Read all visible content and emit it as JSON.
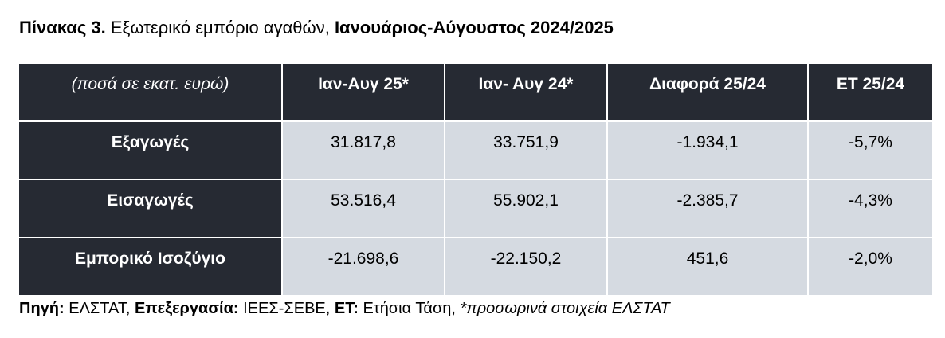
{
  "title": {
    "parts": [
      "Πίνακας 3.",
      " Εξωτερικό εμπόριο αγαθών, ",
      "Ιανουάριος-Αύγουστος 2024/2025"
    ]
  },
  "table": {
    "header": [
      "(ποσά σε εκατ. ευρώ)",
      "Ιαν-Αυγ 25*",
      "Ιαν- Αυγ 24*",
      "Διαφορά 25/24",
      "ΕΤ 25/24"
    ],
    "rows": [
      [
        "Εξαγωγές",
        "31.817,8",
        "33.751,9",
        "-1.934,1",
        "-5,7%"
      ],
      [
        "Εισαγωγές",
        "53.516,4",
        "55.902,1",
        "-2.385,7",
        "-4,3%"
      ],
      [
        "Εμπορικό Ισοζύγιο",
        "-21.698,6",
        "-22.150,2",
        "451,6",
        "-2,0%"
      ]
    ]
  },
  "footer": {
    "parts": [
      "Πηγή:",
      " ΕΛΣΤΑΤ, ",
      "Επεξεργασία:",
      " ΙΕΕΣ-ΣΕΒΕ, ",
      "ΕΤ:",
      " Ετήσια Τάση, ",
      "*προσωρινά στοιχεία ΕΛΣΤΑΤ"
    ]
  }
}
